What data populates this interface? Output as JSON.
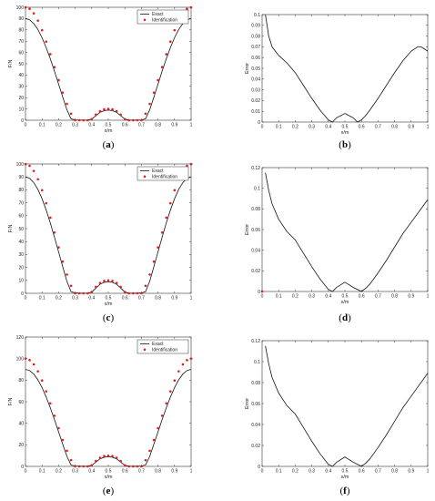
{
  "chart_data": [
    {
      "id": "a",
      "type": "line",
      "caption": "a",
      "xlabel": "x/m",
      "ylabel": "F/N",
      "xlim": [
        0,
        1
      ],
      "ylim": [
        0,
        100
      ],
      "xticks": [
        0,
        0.1,
        0.2,
        0.3,
        0.4,
        0.5,
        0.6,
        0.7,
        0.8,
        0.9,
        1
      ],
      "xticklabels": [
        "0",
        "0.1",
        "0.2",
        "0.3",
        "0.4",
        "0.5",
        "0.6",
        "0.7",
        "0.8",
        "0.9",
        "1"
      ],
      "yticks": [
        0,
        10,
        20,
        30,
        40,
        50,
        60,
        70,
        80,
        90,
        100
      ],
      "yticklabels": [
        "0",
        "10",
        "20",
        "30",
        "40",
        "50",
        "60",
        "70",
        "80",
        "90",
        "100"
      ],
      "legend": {
        "position": "top-right",
        "entries": [
          "Exact",
          "Identification"
        ]
      },
      "series": [
        {
          "name": "Exact",
          "style": "line",
          "x": [
            0,
            0.025,
            0.05,
            0.075,
            0.1,
            0.125,
            0.15,
            0.175,
            0.2,
            0.225,
            0.25,
            0.275,
            0.3,
            0.325,
            0.35,
            0.375,
            0.4,
            0.425,
            0.45,
            0.475,
            0.5,
            0.525,
            0.55,
            0.575,
            0.6,
            0.625,
            0.65,
            0.675,
            0.7,
            0.725,
            0.75,
            0.775,
            0.8,
            0.825,
            0.85,
            0.875,
            0.9,
            0.925,
            0.95,
            0.975,
            1
          ],
          "y": [
            90,
            88.9,
            85.6,
            80.3,
            73.1,
            64.3,
            54.3,
            43.4,
            32.0,
            20.5,
            9.3,
            1.3,
            0.3,
            0.2,
            0.1,
            0.2,
            1.0,
            4.0,
            7.0,
            8.5,
            9.0,
            8.5,
            7.0,
            4.0,
            1.0,
            0.2,
            0.1,
            0.2,
            0.3,
            1.3,
            9.3,
            20.5,
            32.0,
            43.4,
            54.3,
            64.3,
            73.1,
            80.3,
            85.6,
            88.9,
            90
          ]
        },
        {
          "name": "Identification",
          "style": "points",
          "x": [
            0,
            0.025,
            0.05,
            0.075,
            0.1,
            0.125,
            0.15,
            0.175,
            0.2,
            0.225,
            0.25,
            0.275,
            0.3,
            0.325,
            0.35,
            0.375,
            0.4,
            0.425,
            0.45,
            0.475,
            0.5,
            0.525,
            0.55,
            0.575,
            0.6,
            0.625,
            0.65,
            0.675,
            0.7,
            0.725,
            0.75,
            0.775,
            0.8,
            0.825,
            0.85,
            0.875,
            0.9,
            0.925,
            0.95,
            0.975,
            1
          ],
          "y": [
            100,
            98.6,
            94.6,
            88.2,
            79.7,
            69.6,
            58.5,
            47.0,
            35.5,
            24.5,
            14.5,
            5.8,
            0.0,
            0.0,
            0.0,
            0.0,
            1.0,
            5.0,
            8.0,
            9.6,
            10.0,
            9.6,
            8.0,
            5.0,
            1.0,
            0.0,
            0.0,
            0.0,
            0.0,
            5.8,
            14.5,
            24.5,
            35.5,
            47.0,
            58.5,
            69.6,
            79.7,
            88.2,
            94.6,
            98.6,
            100
          ]
        }
      ]
    },
    {
      "id": "b",
      "type": "line",
      "caption": "b",
      "xlabel": "x/m",
      "ylabel": "Error",
      "xlim": [
        0,
        1
      ],
      "ylim": [
        0,
        0.1
      ],
      "xticks": [
        0,
        0.1,
        0.2,
        0.3,
        0.4,
        0.5,
        0.6,
        0.7,
        0.8,
        0.9,
        1
      ],
      "xticklabels": [
        "0",
        "0.1",
        "0.2",
        "0.3",
        "0.4",
        "0.5",
        "0.6",
        "0.7",
        "0.8",
        "0.9",
        "1"
      ],
      "yticks": [
        0,
        0.01,
        0.02,
        0.03,
        0.04,
        0.05,
        0.06,
        0.07,
        0.08,
        0.09,
        0.1
      ],
      "yticklabels": [
        "0",
        "0.01",
        "0.02",
        "0.03",
        "0.04",
        "0.05",
        "0.06",
        "0.07",
        "0.08",
        "0.09",
        "0.1"
      ],
      "series": [
        {
          "style": "line",
          "x": [
            0.02,
            0.04,
            0.06,
            0.1,
            0.15,
            0.2,
            0.25,
            0.3,
            0.35,
            0.4,
            0.425,
            0.45,
            0.5,
            0.55,
            0.575,
            0.6,
            0.625,
            0.65,
            0.7,
            0.75,
            0.8,
            0.85,
            0.9,
            0.94,
            0.96,
            0.98,
            1.0
          ],
          "y": [
            0.1,
            0.08,
            0.07,
            0.062,
            0.055,
            0.046,
            0.034,
            0.022,
            0.011,
            0.002,
            0.0,
            0.004,
            0.008,
            0.004,
            0.0,
            0.002,
            0.006,
            0.011,
            0.022,
            0.034,
            0.046,
            0.057,
            0.066,
            0.07,
            0.07,
            0.068,
            0.066
          ]
        }
      ]
    },
    {
      "id": "c",
      "type": "line",
      "caption": "c",
      "xlabel": "x/m",
      "ylabel": "F/N",
      "xlim": [
        0,
        1
      ],
      "ylim": [
        0,
        100
      ],
      "xticks": [
        0,
        0.1,
        0.2,
        0.3,
        0.4,
        0.5,
        0.6,
        0.7,
        0.8,
        0.9,
        1
      ],
      "xticklabels": [
        "0",
        "0.1",
        "0.2",
        "0.3",
        "0.4",
        "0.5",
        "0.6",
        "0.7",
        "0.8",
        "0.9",
        "1"
      ],
      "yticks": [
        0,
        10,
        20,
        30,
        40,
        50,
        60,
        70,
        80,
        90,
        100
      ],
      "yticklabels": [
        "0",
        "10",
        "20",
        "30",
        "40",
        "50",
        "60",
        "70",
        "80",
        "90",
        "100"
      ],
      "legend": {
        "position": "top-right",
        "entries": [
          "Exact",
          "Identification"
        ]
      },
      "series": [
        {
          "name": "Exact",
          "style": "line",
          "x": [
            0,
            0.025,
            0.05,
            0.075,
            0.1,
            0.125,
            0.15,
            0.175,
            0.2,
            0.225,
            0.25,
            0.275,
            0.3,
            0.325,
            0.35,
            0.375,
            0.4,
            0.425,
            0.45,
            0.475,
            0.5,
            0.525,
            0.55,
            0.575,
            0.6,
            0.625,
            0.65,
            0.675,
            0.7,
            0.725,
            0.75,
            0.775,
            0.8,
            0.825,
            0.85,
            0.875,
            0.9,
            0.925,
            0.95,
            0.975,
            1
          ],
          "y": [
            90,
            88.9,
            85.6,
            80.3,
            73.1,
            64.3,
            54.3,
            43.4,
            32.0,
            20.5,
            9.3,
            1.3,
            0.3,
            0.2,
            0.1,
            0.2,
            1.0,
            4.0,
            7.0,
            8.5,
            9.0,
            8.5,
            7.0,
            4.0,
            1.0,
            0.2,
            0.1,
            0.2,
            0.3,
            1.3,
            9.3,
            20.5,
            32.0,
            43.4,
            54.3,
            64.3,
            73.1,
            80.3,
            85.6,
            88.9,
            90
          ]
        },
        {
          "name": "Identification",
          "style": "points",
          "x": [
            0,
            0.025,
            0.05,
            0.075,
            0.1,
            0.125,
            0.15,
            0.175,
            0.2,
            0.225,
            0.25,
            0.275,
            0.3,
            0.325,
            0.35,
            0.375,
            0.4,
            0.425,
            0.45,
            0.475,
            0.5,
            0.525,
            0.55,
            0.575,
            0.6,
            0.625,
            0.65,
            0.675,
            0.7,
            0.725,
            0.75,
            0.775,
            0.8,
            0.825,
            0.85,
            0.875,
            0.9,
            0.925,
            0.95,
            0.975,
            1
          ],
          "y": [
            100,
            98.6,
            94.6,
            88.2,
            79.7,
            69.6,
            58.5,
            47.0,
            35.5,
            24.5,
            14.5,
            5.8,
            0.0,
            0.0,
            0.0,
            0.0,
            1.0,
            5.0,
            8.0,
            9.6,
            10.0,
            9.6,
            8.0,
            5.0,
            1.0,
            0.0,
            0.0,
            0.0,
            0.0,
            5.8,
            14.5,
            24.5,
            35.5,
            47.0,
            58.5,
            69.6,
            79.7,
            88.2,
            94.6,
            98.6,
            100
          ]
        }
      ]
    },
    {
      "id": "d",
      "type": "line",
      "caption": "d",
      "xlabel": "x/m",
      "ylabel": "Error",
      "xlim": [
        0,
        1
      ],
      "ylim": [
        0,
        0.12
      ],
      "xticks": [
        0,
        0.1,
        0.2,
        0.3,
        0.4,
        0.5,
        0.6,
        0.7,
        0.8,
        0.9,
        1
      ],
      "xticklabels": [
        "0",
        "0.1",
        "0.2",
        "0.3",
        "0.4",
        "0.5",
        "0.6",
        "0.7",
        "0.8",
        "0.9",
        "1"
      ],
      "yticks": [
        0,
        0.02,
        0.04,
        0.06,
        0.08,
        0.1,
        0.12
      ],
      "yticklabels": [
        "0",
        "0.02",
        "0.04",
        "0.06",
        "0.08",
        "0.1",
        "0.12"
      ],
      "series": [
        {
          "style": "line",
          "x": [
            0.02,
            0.04,
            0.06,
            0.1,
            0.15,
            0.2,
            0.25,
            0.3,
            0.35,
            0.4,
            0.425,
            0.45,
            0.5,
            0.55,
            0.6,
            0.625,
            0.65,
            0.7,
            0.75,
            0.8,
            0.85,
            0.9,
            0.95,
            1.0
          ],
          "y": [
            0.115,
            0.098,
            0.085,
            0.07,
            0.058,
            0.05,
            0.037,
            0.024,
            0.012,
            0.002,
            0.0,
            0.004,
            0.009,
            0.004,
            0.0,
            0.003,
            0.007,
            0.018,
            0.03,
            0.043,
            0.056,
            0.067,
            0.078,
            0.089
          ]
        },
        {
          "style": "marker",
          "x": [
            0.0
          ],
          "y": [
            0.0
          ]
        }
      ]
    },
    {
      "id": "e",
      "type": "line",
      "caption": "e",
      "xlabel": "x/m",
      "ylabel": "F/N",
      "xlim": [
        0,
        1
      ],
      "ylim": [
        0,
        120
      ],
      "xticks": [
        0,
        0.1,
        0.2,
        0.3,
        0.4,
        0.5,
        0.6,
        0.7,
        0.8,
        0.9,
        1
      ],
      "xticklabels": [
        "0",
        "0.1",
        "0.2",
        "0.3",
        "0.4",
        "0.5",
        "0.6",
        "0.7",
        "0.8",
        "0.9",
        "1"
      ],
      "yticks": [
        0,
        20,
        40,
        60,
        80,
        100,
        120
      ],
      "yticklabels": [
        "0",
        "20",
        "40",
        "60",
        "80",
        "100",
        "120"
      ],
      "legend": {
        "position": "top-right",
        "entries": [
          "Exact",
          "Identification"
        ]
      },
      "series": [
        {
          "name": "Exact",
          "style": "line",
          "x": [
            0,
            0.025,
            0.05,
            0.075,
            0.1,
            0.125,
            0.15,
            0.175,
            0.2,
            0.225,
            0.25,
            0.275,
            0.3,
            0.325,
            0.35,
            0.375,
            0.4,
            0.425,
            0.45,
            0.475,
            0.5,
            0.525,
            0.55,
            0.575,
            0.6,
            0.625,
            0.65,
            0.675,
            0.7,
            0.725,
            0.75,
            0.775,
            0.8,
            0.825,
            0.85,
            0.875,
            0.9,
            0.925,
            0.95,
            0.975,
            1
          ],
          "y": [
            90,
            88.9,
            85.6,
            80.3,
            73.1,
            64.3,
            54.3,
            43.4,
            32.0,
            20.5,
            9.3,
            1.3,
            0.3,
            0.2,
            0.1,
            0.2,
            1.0,
            4.0,
            7.0,
            8.5,
            9.0,
            8.5,
            7.0,
            4.0,
            1.0,
            0.2,
            0.1,
            0.2,
            0.3,
            1.3,
            9.3,
            20.5,
            32.0,
            43.4,
            54.3,
            64.3,
            73.1,
            80.3,
            85.6,
            88.9,
            90
          ]
        },
        {
          "name": "Identification",
          "style": "points",
          "x": [
            0,
            0.025,
            0.05,
            0.075,
            0.1,
            0.125,
            0.15,
            0.175,
            0.2,
            0.225,
            0.25,
            0.275,
            0.3,
            0.325,
            0.35,
            0.375,
            0.4,
            0.425,
            0.45,
            0.475,
            0.5,
            0.525,
            0.55,
            0.575,
            0.6,
            0.625,
            0.65,
            0.675,
            0.7,
            0.725,
            0.75,
            0.775,
            0.8,
            0.825,
            0.85,
            0.875,
            0.9,
            0.925,
            0.95,
            0.975,
            1
          ],
          "y": [
            100,
            98.6,
            94.6,
            88.2,
            79.7,
            69.6,
            58.5,
            47.0,
            35.5,
            24.5,
            14.5,
            5.8,
            0.0,
            0.0,
            0.0,
            0.0,
            1.0,
            5.0,
            8.0,
            9.6,
            10.0,
            9.6,
            8.0,
            5.0,
            1.0,
            0.0,
            0.0,
            0.0,
            0.0,
            5.8,
            14.5,
            24.5,
            35.5,
            47.0,
            58.5,
            69.6,
            79.7,
            88.2,
            94.6,
            98.6,
            100
          ]
        }
      ]
    },
    {
      "id": "f",
      "type": "line",
      "caption": "f",
      "xlabel": "x/m",
      "ylabel": "Error",
      "xlim": [
        0,
        1
      ],
      "ylim": [
        0,
        0.12
      ],
      "xticks": [
        0,
        0.1,
        0.2,
        0.3,
        0.4,
        0.5,
        0.6,
        0.7,
        0.8,
        0.9,
        1
      ],
      "xticklabels": [
        "0",
        "0.1",
        "0.2",
        "0.3",
        "0.4",
        "0.5",
        "0.6",
        "0.7",
        "0.8",
        "0.9",
        "1"
      ],
      "yticks": [
        0,
        0.02,
        0.04,
        0.06,
        0.08,
        0.1,
        0.12
      ],
      "yticklabels": [
        "0",
        "0.02",
        "0.04",
        "0.06",
        "0.08",
        "0.1",
        "0.12"
      ],
      "series": [
        {
          "style": "line",
          "x": [
            0.02,
            0.04,
            0.06,
            0.1,
            0.15,
            0.2,
            0.25,
            0.3,
            0.35,
            0.4,
            0.425,
            0.45,
            0.5,
            0.55,
            0.6,
            0.625,
            0.65,
            0.7,
            0.75,
            0.8,
            0.85,
            0.9,
            0.95,
            1.0
          ],
          "y": [
            0.115,
            0.098,
            0.085,
            0.07,
            0.058,
            0.05,
            0.037,
            0.024,
            0.012,
            0.002,
            0.0,
            0.004,
            0.009,
            0.004,
            0.0,
            0.003,
            0.007,
            0.018,
            0.03,
            0.043,
            0.056,
            0.067,
            0.078,
            0.089
          ]
        }
      ]
    }
  ],
  "colors": {
    "line": "#111111",
    "points": "#e02020",
    "axis": "#333333"
  }
}
